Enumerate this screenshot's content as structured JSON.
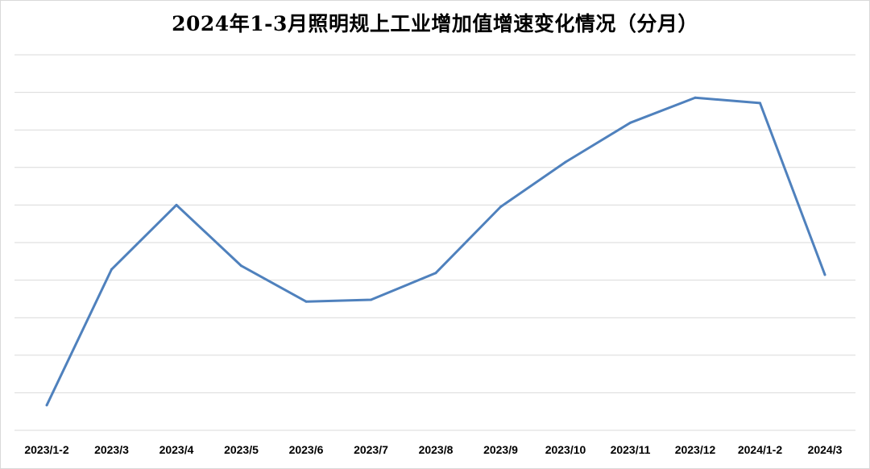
{
  "chart_data": {
    "type": "line",
    "title": "2024年1-3月照明规上工业增加值增速变化情况（分月）",
    "categories": [
      "2023/1-2",
      "2023/3",
      "2023/4",
      "2023/5",
      "2023/6",
      "2023/7",
      "2023/8",
      "2023/9",
      "2023/10",
      "2023/11",
      "2023/12",
      "2024/1-2",
      "2024/3"
    ],
    "series": [
      {
        "values": [
          0.7,
          4.5,
          6.3,
          4.6,
          3.6,
          3.65,
          4.4,
          6.25,
          7.5,
          8.6,
          9.3,
          9.15,
          4.35
        ]
      }
    ],
    "ylim": [
      0,
      10.5
    ],
    "grid": true,
    "y_axis_labels": false,
    "line_color": "#4F81BD",
    "grid_color": "#d9d9d9"
  }
}
